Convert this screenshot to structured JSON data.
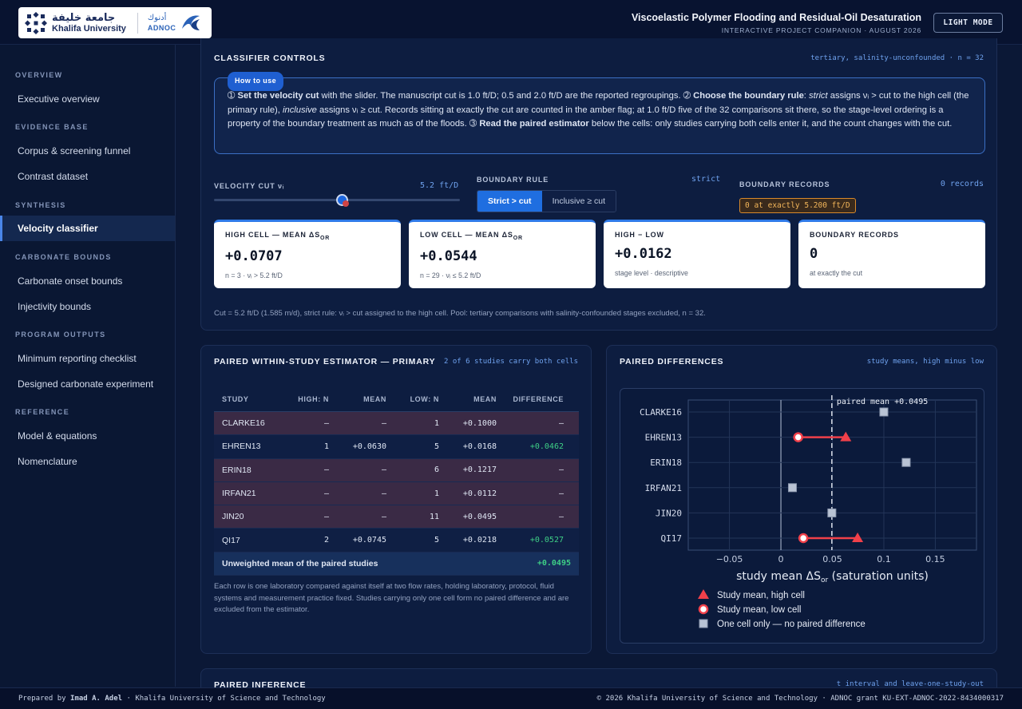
{
  "header": {
    "logo_ku_ar": "جامعة خليفة",
    "logo_ku_en": "Khalifa University",
    "logo_adnoc_ar": "أدنوك",
    "logo_adnoc_en": "ADNOC",
    "title": "Viscoelastic Polymer Flooding and Residual-Oil Desaturation",
    "subtitle": "INTERACTIVE PROJECT COMPANION · AUGUST 2026",
    "mode_button": "LIGHT MODE"
  },
  "sidebar": {
    "sections": [
      {
        "title": "OVERVIEW",
        "items": [
          "Executive overview"
        ]
      },
      {
        "title": "EVIDENCE BASE",
        "items": [
          "Corpus & screening funnel",
          "Contrast dataset"
        ]
      },
      {
        "title": "SYNTHESIS",
        "items": [
          "Velocity classifier"
        ]
      },
      {
        "title": "CARBONATE BOUNDS",
        "items": [
          "Carbonate onset bounds",
          "Injectivity bounds"
        ]
      },
      {
        "title": "PROGRAM OUTPUTS",
        "items": [
          "Minimum reporting checklist",
          "Designed carbonate experiment"
        ]
      },
      {
        "title": "REFERENCE",
        "items": [
          "Model & equations",
          "Nomenclature"
        ]
      }
    ],
    "active": "Velocity classifier"
  },
  "controls": {
    "title": "CLASSIFIER CONTROLS",
    "tag": "tertiary, salinity-unconfounded · n = 32",
    "howto_badge": "How to use",
    "howto_s1_num": "➀",
    "howto_s1_bold": "Set the velocity cut",
    "howto_s1": " with the slider. The manuscript cut is 1.0 ft/D; 0.5 and 2.0 ft/D are the reported regroupings. ",
    "howto_s2_num": "➁",
    "howto_s2_bold": "Choose the boundary rule",
    "howto_s2a": ": ",
    "howto_s2_strict": "strict",
    "howto_s2b": " assigns νᵢ > cut to the high cell (the primary rule), ",
    "howto_s2_incl": "inclusive",
    "howto_s2c": " assigns νᵢ ≥ cut. Records sitting at exactly the cut are counted in the amber flag; at 1.0 ft/D five of the 32 comparisons sit there, so the stage-level ordering is a property of the boundary treatment as much as of the floods. ",
    "howto_s3_num": "➂",
    "howto_s3_bold": "Read the paired estimator",
    "howto_s3": " below the cells: only studies carrying both cells enter it, and the count changes with the cut.",
    "velocity_label": "VELOCITY CUT νᵢ",
    "velocity_value": "5.2 ft/D",
    "slider_fraction": 0.52,
    "boundary_label": "BOUNDARY RULE",
    "boundary_value": "strict",
    "strict_btn": "Strict > cut",
    "inclusive_btn": "Inclusive ≥ cut",
    "records_label": "BOUNDARY RECORDS",
    "records_value": "0 records",
    "records_flag": "0 at exactly 5.200 ft/D",
    "cards": [
      {
        "label": "HIGH CELL — MEAN ΔS",
        "sub_or": "OR",
        "value": "+0.0707",
        "sub": "n = 3 · νᵢ > 5.2 ft/D"
      },
      {
        "label": "LOW CELL — MEAN ΔS",
        "sub_or": "OR",
        "value": "+0.0544",
        "sub": "n = 29 · νᵢ ≤ 5.2 ft/D"
      },
      {
        "label": "HIGH − LOW",
        "sub_or": "",
        "value": "+0.0162",
        "sub": "stage level · descriptive"
      },
      {
        "label": "BOUNDARY RECORDS",
        "sub_or": "",
        "value": "0",
        "sub": "at exactly the cut"
      }
    ],
    "footnote": "Cut = 5.2 ft/D (1.585 m/d), strict rule: νᵢ > cut assigned to the high cell. Pool: tertiary comparisons with salinity-confounded stages excluded, n = 32."
  },
  "paired": {
    "title": "PAIRED WITHIN-STUDY ESTIMATOR — PRIMARY",
    "tag": "2 of 6 studies carry both cells",
    "headers": [
      "STUDY",
      "HIGH: N",
      "MEAN",
      "LOW: N",
      "MEAN",
      "DIFFERENCE"
    ],
    "rows": [
      {
        "study": "CLARKE16",
        "hn": "—",
        "hm": "—",
        "ln": "1",
        "lm": "+0.1000",
        "diff": "—",
        "kind": "one"
      },
      {
        "study": "EHREN13",
        "hn": "1",
        "hm": "+0.0630",
        "ln": "5",
        "lm": "+0.0168",
        "diff": "+0.0462",
        "kind": "both"
      },
      {
        "study": "ERIN18",
        "hn": "—",
        "hm": "—",
        "ln": "6",
        "lm": "+0.1217",
        "diff": "—",
        "kind": "one"
      },
      {
        "study": "IRFAN21",
        "hn": "—",
        "hm": "—",
        "ln": "1",
        "lm": "+0.0112",
        "diff": "—",
        "kind": "one"
      },
      {
        "study": "JIN20",
        "hn": "—",
        "hm": "—",
        "ln": "11",
        "lm": "+0.0495",
        "diff": "—",
        "kind": "one"
      },
      {
        "study": "QI17",
        "hn": "2",
        "hm": "+0.0745",
        "ln": "5",
        "lm": "+0.0218",
        "diff": "+0.0527",
        "kind": "both"
      }
    ],
    "mean_label": "Unweighted mean of the paired studies",
    "mean_value": "+0.0495",
    "note": "Each row is one laboratory compared against itself at two flow rates, holding laboratory, protocol, fluid systems and measurement practice fixed. Studies carrying only one cell form no paired difference and are excluded from the estimator."
  },
  "diff": {
    "title": "PAIRED DIFFERENCES",
    "tag": "study means, high minus low"
  },
  "chart_data": {
    "type": "scatter",
    "categories": [
      "CLARKE16",
      "EHREN13",
      "ERIN18",
      "IRFAN21",
      "JIN20",
      "QI17"
    ],
    "series": [
      {
        "name": "Study mean, high cell",
        "values": [
          null,
          0.063,
          null,
          null,
          null,
          0.0745
        ]
      },
      {
        "name": "Study mean, low cell",
        "values": [
          null,
          0.0168,
          null,
          null,
          null,
          0.0218
        ]
      },
      {
        "name": "One cell only — no paired difference",
        "values": [
          0.1,
          null,
          0.1217,
          0.0112,
          0.0495,
          null
        ]
      }
    ],
    "xlabel": "study mean ΔS",
    "xlabel_sub": "or",
    "xlabel_unit": " (saturation units)",
    "xlim": [
      -0.09,
      0.19
    ],
    "xticks": [
      -0.05,
      0,
      0.05,
      0.1,
      0.15
    ],
    "xtick_labels": [
      "−0.05",
      "0",
      "0.05",
      "0.1",
      "0.15"
    ],
    "reference_value": 0.0495,
    "reference_label": "paired mean +0.0495",
    "grid": true,
    "legend": "bottom",
    "colors": {
      "high": "#f0404a",
      "low": "#f0404a",
      "one": "#b9c3d4"
    }
  },
  "inference": {
    "title": "PAIRED INFERENCE",
    "tag": "t interval and leave-one-study-out"
  },
  "footer": {
    "left_a": "Prepared by ",
    "left_name": "Imad A. Adel",
    "left_b": " · Khalifa University of Science and Technology",
    "right": "© 2026 Khalifa University of Science and Technology · ADNOC grant KU-EXT-ADNOC-2022-8434000317"
  }
}
